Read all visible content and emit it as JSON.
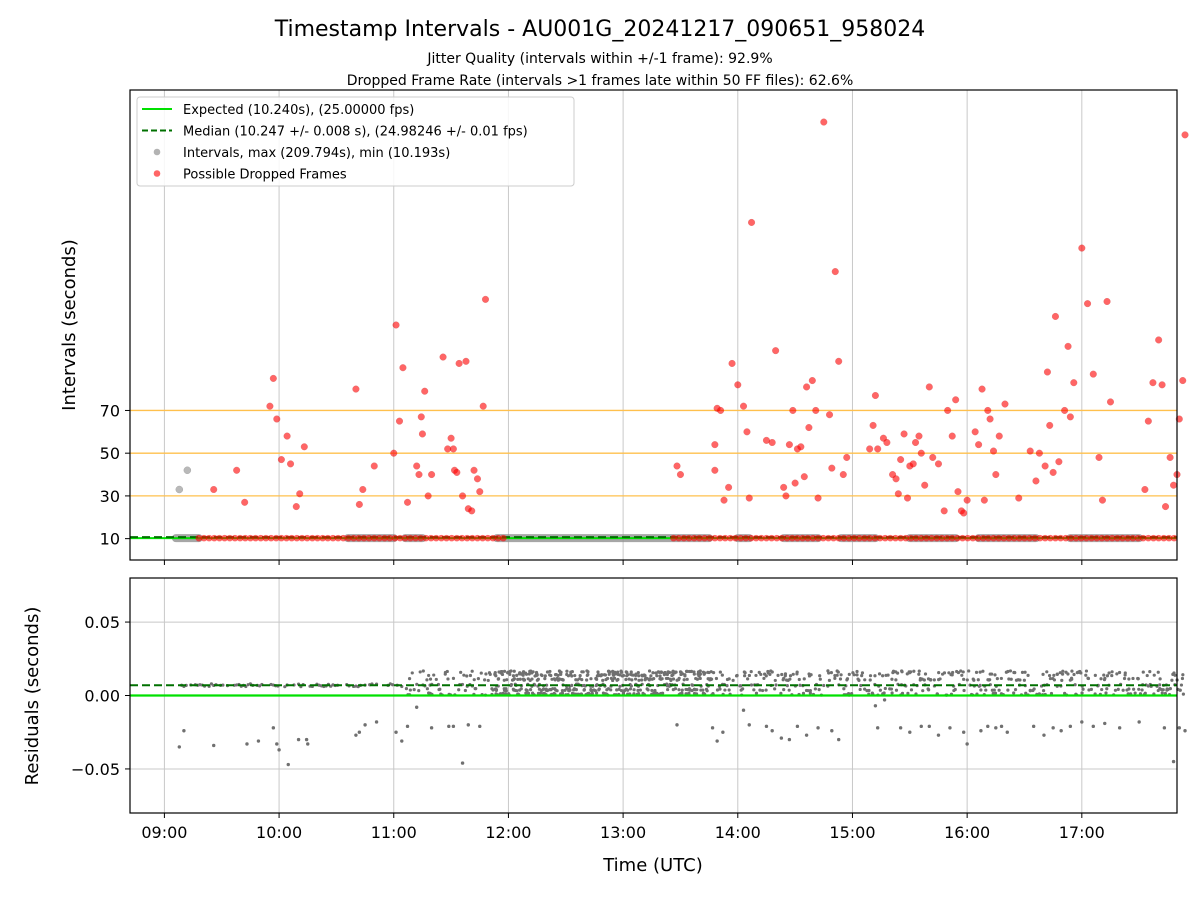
{
  "chart_data": {
    "type": "scatter",
    "title": "Timestamp Intervals - AU001G_20241217_090651_958024",
    "subtitle_lines": [
      "Jitter Quality (intervals within +/-1 frame): 92.9%",
      "Dropped Frame Rate (intervals >1 frames late within 50 FF files): 62.6%"
    ],
    "xlabel": "Time (UTC)",
    "x_ticks": [
      "09:00",
      "10:00",
      "11:00",
      "12:00",
      "13:00",
      "14:00",
      "15:00",
      "16:00",
      "17:00"
    ],
    "x_range_hours": [
      8.7,
      17.83
    ],
    "grid": true,
    "legend_position": "top-left",
    "colors": {
      "expected": "#00e000",
      "median": "#007000",
      "intervals": "#808080",
      "dropped": "#ff0000",
      "thresholds": "#ffc04d"
    },
    "top": {
      "ylabel": "Intervals (seconds)",
      "y_ticks": [
        10,
        30,
        50,
        70
      ],
      "y_range": [
        0,
        220
      ],
      "threshold_lines": [
        30,
        50,
        70
      ],
      "expected_value": 10.24,
      "median_value": 10.247,
      "legend": [
        "Expected (10.240s), (25.00000 fps)",
        "Median (10.247 +/- 0.008 s), (24.98246 +/- 0.01 fps)",
        "Intervals, max (209.794s), min (10.193s)",
        "Possible Dropped Frames"
      ],
      "normal_points": [
        [
          9.13,
          33
        ],
        [
          9.2,
          42
        ]
      ],
      "normal_bands": [
        [
          9.1,
          9.3
        ],
        [
          10.6,
          11.0
        ],
        [
          11.1,
          11.25
        ],
        [
          11.9,
          13.75
        ],
        [
          14.0,
          14.1
        ],
        [
          14.4,
          14.7
        ],
        [
          14.9,
          15.2
        ],
        [
          15.5,
          15.9
        ],
        [
          16.1,
          16.6
        ],
        [
          16.9,
          17.5
        ]
      ],
      "dropped_points": [
        [
          9.43,
          33
        ],
        [
          9.63,
          42
        ],
        [
          9.7,
          27
        ],
        [
          9.92,
          72
        ],
        [
          9.95,
          85
        ],
        [
          9.98,
          66
        ],
        [
          10.02,
          47
        ],
        [
          10.07,
          58
        ],
        [
          10.1,
          45
        ],
        [
          10.15,
          25
        ],
        [
          10.18,
          31
        ],
        [
          10.22,
          53
        ],
        [
          10.67,
          80
        ],
        [
          10.7,
          26
        ],
        [
          10.73,
          33
        ],
        [
          10.83,
          44
        ],
        [
          11.0,
          50
        ],
        [
          11.02,
          110
        ],
        [
          11.05,
          65
        ],
        [
          11.08,
          90
        ],
        [
          11.12,
          27
        ],
        [
          11.2,
          44
        ],
        [
          11.22,
          40
        ],
        [
          11.24,
          67
        ],
        [
          11.25,
          59
        ],
        [
          11.27,
          79
        ],
        [
          11.3,
          30
        ],
        [
          11.33,
          40
        ],
        [
          11.43,
          95
        ],
        [
          11.47,
          52
        ],
        [
          11.5,
          57
        ],
        [
          11.52,
          52
        ],
        [
          11.53,
          42
        ],
        [
          11.55,
          41
        ],
        [
          11.57,
          92
        ],
        [
          11.6,
          30
        ],
        [
          11.63,
          93
        ],
        [
          11.65,
          24
        ],
        [
          11.68,
          23
        ],
        [
          11.7,
          42
        ],
        [
          11.73,
          38
        ],
        [
          11.75,
          32
        ],
        [
          11.78,
          72
        ],
        [
          11.8,
          122
        ],
        [
          13.47,
          44
        ],
        [
          13.5,
          40
        ],
        [
          13.8,
          54
        ],
        [
          13.82,
          71
        ],
        [
          13.85,
          70
        ],
        [
          13.88,
          28
        ],
        [
          13.92,
          34
        ],
        [
          13.95,
          92
        ],
        [
          13.8,
          42
        ],
        [
          14.0,
          82
        ],
        [
          14.05,
          72
        ],
        [
          14.08,
          60
        ],
        [
          14.1,
          29
        ],
        [
          14.12,
          158
        ],
        [
          14.25,
          56
        ],
        [
          14.3,
          55
        ],
        [
          14.33,
          98
        ],
        [
          14.4,
          34
        ],
        [
          14.42,
          30
        ],
        [
          14.45,
          54
        ],
        [
          14.48,
          70
        ],
        [
          14.5,
          36
        ],
        [
          14.52,
          52
        ],
        [
          14.55,
          53
        ],
        [
          14.58,
          39
        ],
        [
          14.6,
          81
        ],
        [
          14.62,
          62
        ],
        [
          14.65,
          84
        ],
        [
          14.68,
          70
        ],
        [
          14.7,
          29
        ],
        [
          14.75,
          205
        ],
        [
          14.8,
          68
        ],
        [
          14.82,
          43
        ],
        [
          14.85,
          135
        ],
        [
          14.88,
          93
        ],
        [
          14.92,
          40
        ],
        [
          14.95,
          48
        ],
        [
          15.15,
          52
        ],
        [
          15.18,
          63
        ],
        [
          15.2,
          77
        ],
        [
          15.22,
          52
        ],
        [
          15.27,
          57
        ],
        [
          15.3,
          55
        ],
        [
          15.35,
          40
        ],
        [
          15.38,
          38
        ],
        [
          15.4,
          31
        ],
        [
          15.42,
          47
        ],
        [
          15.45,
          59
        ],
        [
          15.48,
          29
        ],
        [
          15.5,
          44
        ],
        [
          15.53,
          45
        ],
        [
          15.55,
          55
        ],
        [
          15.58,
          58
        ],
        [
          15.6,
          50
        ],
        [
          15.63,
          35
        ],
        [
          15.67,
          81
        ],
        [
          15.7,
          48
        ],
        [
          15.75,
          45
        ],
        [
          15.8,
          23
        ],
        [
          15.83,
          70
        ],
        [
          15.87,
          58
        ],
        [
          15.9,
          75
        ],
        [
          15.92,
          32
        ],
        [
          15.95,
          23
        ],
        [
          15.97,
          22
        ],
        [
          16.0,
          28
        ],
        [
          16.07,
          60
        ],
        [
          16.1,
          54
        ],
        [
          16.13,
          80
        ],
        [
          16.15,
          28
        ],
        [
          16.18,
          70
        ],
        [
          16.2,
          66
        ],
        [
          16.23,
          51
        ],
        [
          16.25,
          40
        ],
        [
          16.28,
          58
        ],
        [
          16.33,
          73
        ],
        [
          16.45,
          29
        ],
        [
          16.55,
          51
        ],
        [
          16.6,
          37
        ],
        [
          16.63,
          50
        ],
        [
          16.68,
          44
        ],
        [
          16.7,
          88
        ],
        [
          16.72,
          63
        ],
        [
          16.75,
          41
        ],
        [
          16.77,
          114
        ],
        [
          16.8,
          46
        ],
        [
          16.85,
          70
        ],
        [
          16.88,
          100
        ],
        [
          16.9,
          67
        ],
        [
          16.93,
          83
        ],
        [
          17.0,
          146
        ],
        [
          17.05,
          120
        ],
        [
          17.1,
          87
        ],
        [
          17.15,
          48
        ],
        [
          17.18,
          28
        ],
        [
          17.22,
          121
        ],
        [
          17.25,
          74
        ],
        [
          17.55,
          33
        ],
        [
          17.58,
          65
        ],
        [
          17.62,
          83
        ],
        [
          17.67,
          103
        ],
        [
          17.7,
          82
        ],
        [
          17.73,
          25
        ],
        [
          17.77,
          48
        ],
        [
          17.8,
          35
        ],
        [
          17.83,
          40
        ],
        [
          17.85,
          66
        ],
        [
          17.88,
          84
        ],
        [
          17.9,
          199
        ]
      ]
    },
    "bottom": {
      "ylabel": "Residuals (seconds)",
      "y_ticks": [
        "0.05",
        "0.00",
        "−0.05"
      ],
      "y_tick_values": [
        0.05,
        0.0,
        -0.05
      ],
      "y_range": [
        -0.08,
        0.08
      ],
      "expected_residual": 0.0,
      "median_residual": 0.007,
      "outliers": [
        [
          9.13,
          -0.035
        ],
        [
          9.17,
          -0.024
        ],
        [
          9.43,
          -0.034
        ],
        [
          9.72,
          -0.033
        ],
        [
          9.82,
          -0.031
        ],
        [
          9.95,
          -0.022
        ],
        [
          9.98,
          -0.033
        ],
        [
          10.0,
          -0.037
        ],
        [
          10.08,
          -0.047
        ],
        [
          10.17,
          -0.03
        ],
        [
          10.24,
          -0.03
        ],
        [
          10.25,
          -0.033
        ],
        [
          10.67,
          -0.027
        ],
        [
          10.7,
          -0.025
        ],
        [
          10.75,
          -0.02
        ],
        [
          10.85,
          -0.018
        ],
        [
          11.02,
          -0.025
        ],
        [
          11.07,
          -0.031
        ],
        [
          11.12,
          -0.021
        ],
        [
          11.2,
          -0.008
        ],
        [
          11.33,
          -0.022
        ],
        [
          11.48,
          -0.021
        ],
        [
          11.52,
          -0.021
        ],
        [
          11.6,
          -0.046
        ],
        [
          11.65,
          -0.02
        ],
        [
          11.75,
          -0.021
        ],
        [
          13.47,
          -0.02
        ],
        [
          13.78,
          -0.022
        ],
        [
          13.82,
          -0.031
        ],
        [
          13.87,
          -0.025
        ],
        [
          14.05,
          -0.01
        ],
        [
          14.1,
          -0.02
        ],
        [
          14.25,
          -0.021
        ],
        [
          14.3,
          -0.024
        ],
        [
          14.38,
          -0.029
        ],
        [
          14.45,
          -0.03
        ],
        [
          14.52,
          -0.021
        ],
        [
          14.6,
          -0.027
        ],
        [
          14.7,
          -0.022
        ],
        [
          14.82,
          -0.024
        ],
        [
          14.88,
          -0.03
        ],
        [
          15.2,
          -0.007
        ],
        [
          15.22,
          -0.022
        ],
        [
          15.28,
          -0.003
        ],
        [
          15.42,
          -0.022
        ],
        [
          15.5,
          -0.025
        ],
        [
          15.6,
          -0.021
        ],
        [
          15.67,
          -0.021
        ],
        [
          15.75,
          -0.027
        ],
        [
          15.85,
          -0.022
        ],
        [
          15.97,
          -0.025
        ],
        [
          16.0,
          -0.033
        ],
        [
          16.12,
          -0.024
        ],
        [
          16.18,
          -0.021
        ],
        [
          16.25,
          -0.022
        ],
        [
          16.3,
          -0.021
        ],
        [
          16.35,
          -0.025
        ],
        [
          16.58,
          -0.021
        ],
        [
          16.67,
          -0.027
        ],
        [
          16.75,
          -0.022
        ],
        [
          16.82,
          -0.024
        ],
        [
          16.9,
          -0.021
        ],
        [
          17.0,
          -0.018
        ],
        [
          17.1,
          -0.021
        ],
        [
          17.2,
          -0.019
        ],
        [
          17.33,
          -0.022
        ],
        [
          17.5,
          -0.018
        ],
        [
          17.72,
          -0.022
        ],
        [
          17.8,
          -0.045
        ],
        [
          17.85,
          -0.022
        ],
        [
          17.9,
          -0.024
        ]
      ]
    }
  }
}
